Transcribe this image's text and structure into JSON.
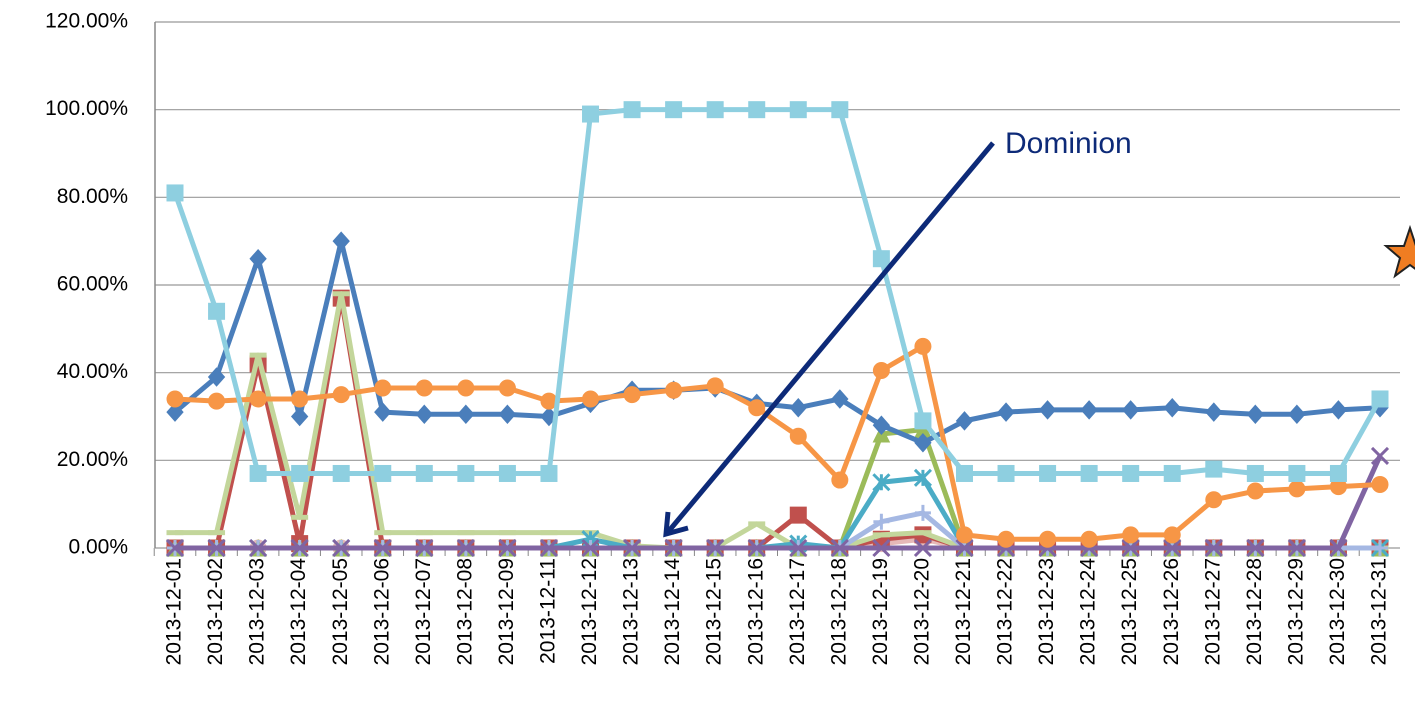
{
  "chart_data": {
    "type": "line",
    "annotation": "Dominion",
    "categories": [
      "2013-12-01",
      "2013-12-02",
      "2013-12-03",
      "2013-12-04",
      "2013-12-05",
      "2013-12-06",
      "2013-12-07",
      "2013-12-08",
      "2013-12-09",
      "2013-12-11",
      "2013-12-12",
      "2013-12-13",
      "2013-12-14",
      "2013-12-15",
      "2013-12-16",
      "2013-12-17",
      "2013-12-18",
      "2013-12-19",
      "2013-12-20",
      "2013-12-21",
      "2013-12-22",
      "2013-12-23",
      "2013-12-24",
      "2013-12-25",
      "2013-12-26",
      "2013-12-27",
      "2013-12-28",
      "2013-12-29",
      "2013-12-30",
      "2013-12-31"
    ],
    "ylim": [
      0,
      120
    ],
    "yticks": [
      {
        "value": 0,
        "label": "0.00%"
      },
      {
        "value": 20,
        "label": "20.00%"
      },
      {
        "value": 40,
        "label": "40.00%"
      },
      {
        "value": 60,
        "label": "60.00%"
      },
      {
        "value": 80,
        "label": "80.00%"
      },
      {
        "value": 100,
        "label": "100.00%"
      },
      {
        "value": 120,
        "label": "120.00%"
      }
    ],
    "grid": true,
    "series": [
      {
        "color": "#e6b9b8",
        "marker": "circle",
        "values": [
          0,
          0,
          0,
          0,
          0,
          0,
          0,
          0,
          0,
          0,
          0,
          0,
          0,
          0,
          0,
          0,
          0,
          1,
          2,
          0,
          0,
          0,
          0,
          0,
          0,
          0,
          0,
          0,
          0,
          0
        ]
      },
      {
        "color": "#c0504d",
        "marker": "square",
        "values": [
          0,
          0,
          42,
          1,
          57,
          0,
          0,
          0,
          0,
          0,
          0,
          0,
          0,
          0,
          0,
          7.5,
          0,
          2,
          3,
          0,
          0,
          0,
          0,
          0,
          0,
          0,
          0,
          0,
          0,
          0
        ]
      },
      {
        "color": "#c3d69b",
        "marker": "bar",
        "values": [
          3.5,
          3.5,
          44,
          7,
          58,
          3.5,
          3.5,
          3.5,
          3.5,
          3.5,
          3.5,
          0.5,
          0,
          0,
          5.5,
          0,
          0,
          3,
          3.5,
          0,
          0,
          0,
          0,
          0,
          0,
          0,
          0,
          0,
          0,
          0
        ]
      },
      {
        "color": "#9bbb59",
        "marker": "triangle",
        "values": [
          0,
          0,
          0,
          0,
          0,
          0,
          0,
          0,
          0,
          0,
          0,
          0,
          0,
          0,
          0,
          0,
          0,
          26,
          27,
          0,
          0,
          0,
          0,
          0,
          0,
          0,
          0,
          0,
          0,
          0
        ]
      },
      {
        "color": "#4bacc6",
        "marker": "star",
        "values": [
          0,
          0,
          0,
          0,
          0,
          0,
          0,
          0,
          0,
          0,
          2,
          0,
          0,
          0,
          0,
          1,
          0,
          15,
          16,
          0,
          0,
          0,
          0,
          0,
          0,
          0,
          0,
          0,
          0,
          0
        ]
      },
      {
        "color": "#a5b8e3",
        "marker": "plus",
        "values": [
          0,
          0,
          0,
          0,
          0,
          0,
          0,
          0,
          0,
          0,
          0,
          0,
          0,
          0,
          0,
          0,
          0,
          6,
          8,
          0,
          0,
          0,
          0,
          0,
          0,
          0,
          0,
          0,
          0,
          0
        ]
      },
      {
        "color": "#8064a2",
        "marker": "x",
        "values": [
          0,
          0,
          0,
          0,
          0,
          0,
          0,
          0,
          0,
          0,
          0,
          0,
          0,
          0,
          0,
          0,
          0,
          0,
          0,
          0,
          0,
          0,
          0,
          0,
          0,
          0,
          0,
          0,
          0,
          21
        ]
      },
      {
        "color": "#4a7ebb",
        "marker": "diamond",
        "values": [
          31,
          39,
          66,
          30,
          70,
          31,
          30.5,
          30.5,
          30.5,
          30,
          33,
          36,
          36,
          36.5,
          33,
          32,
          34,
          28,
          24,
          29,
          31,
          31.5,
          31.5,
          31.5,
          32,
          31,
          30.5,
          30.5,
          31.5,
          32
        ]
      },
      {
        "color": "#f79646",
        "marker": "circle",
        "values": [
          34,
          33.5,
          34,
          34,
          35,
          36.5,
          36.5,
          36.5,
          36.5,
          33.5,
          34,
          35,
          36,
          37,
          32,
          25.5,
          15.5,
          40.5,
          46,
          3,
          2,
          2,
          2,
          3,
          3,
          11,
          13,
          13.5,
          14,
          14.5
        ]
      },
      {
        "color": "#8ecfe0",
        "marker": "square",
        "values": [
          81,
          54,
          17,
          17,
          17,
          17,
          17,
          17,
          17,
          17,
          99,
          100,
          100,
          100,
          100,
          100,
          100,
          66,
          29,
          17,
          17,
          17,
          17,
          17,
          17,
          18,
          17,
          17,
          17,
          34
        ]
      }
    ]
  }
}
